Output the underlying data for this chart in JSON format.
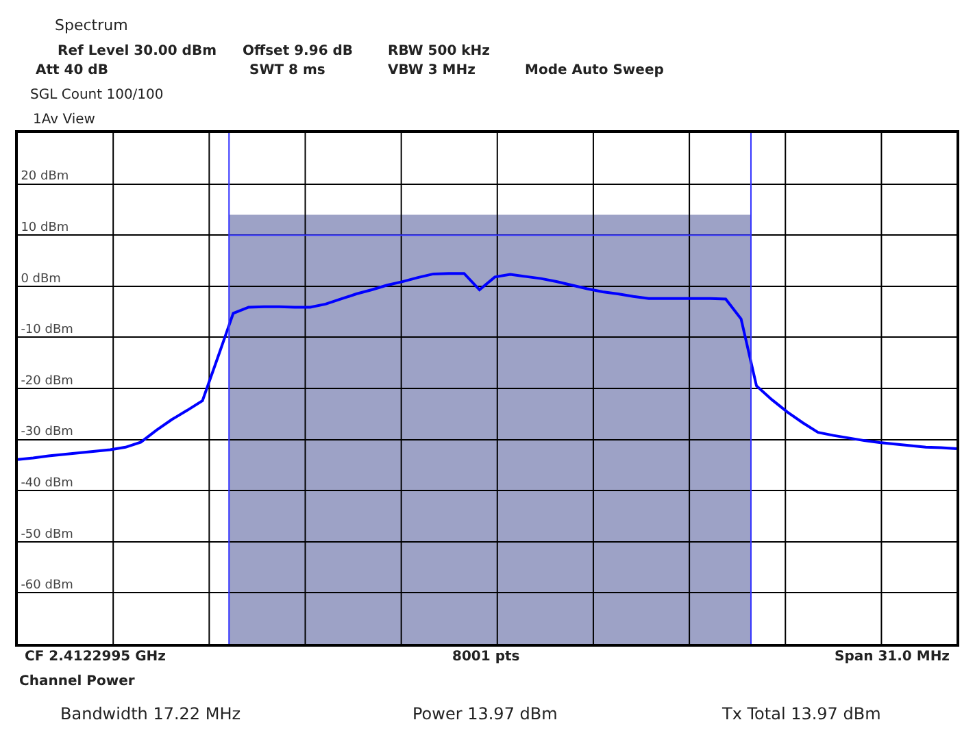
{
  "chart_data": {
    "type": "line",
    "annotations": [
      "Spectrum",
      "Ref Level 30.00 dBm",
      "Offset 9.96 dB",
      "RBW 500 kHz",
      "Att 40 dB",
      "SWT 8 ms",
      "VBW 3 MHz",
      "Mode Auto Sweep",
      "SGL Count 100/100",
      "1Av View",
      "CF 2.4122995 GHz",
      "8001 pts",
      "Span 31.0 MHz",
      "Channel Power",
      "Bandwidth 17.22 MHz",
      "Power 13.97 dBm",
      "Tx Total 13.97 dBm"
    ],
    "categories": [
      null,
      null,
      null,
      null,
      null,
      null,
      null,
      null,
      null,
      null,
      null,
      null,
      null,
      null,
      null,
      null,
      null,
      null,
      null,
      null,
      null,
      null,
      null,
      null,
      null,
      null,
      null,
      null,
      null,
      null,
      null,
      null,
      null,
      null,
      null,
      null,
      null,
      null,
      null,
      null,
      null,
      null,
      null,
      null,
      null,
      null,
      null,
      null,
      null,
      null,
      null,
      null,
      null,
      null,
      null,
      null,
      null,
      null,
      null,
      null,
      null,
      null
    ],
    "series": [
      {
        "color": "#0000ff",
        "values": [
          -33.9,
          -33.6,
          -33.2,
          -32.9,
          -32.6,
          -32.3,
          -32.0,
          -31.5,
          -30.5,
          -28.2,
          -26.1,
          -24.3,
          -22.4,
          -13.9,
          -5.3,
          -4.1,
          -4.0,
          -4.0,
          -4.1,
          -4.1,
          -3.5,
          -2.5,
          -1.5,
          -0.7,
          0.2,
          0.9,
          1.7,
          2.4,
          2.5,
          2.5,
          -0.7,
          1.8,
          2.3,
          1.9,
          1.5,
          0.9,
          0.2,
          -0.5,
          -1.1,
          -1.5,
          -2.0,
          -2.4,
          -2.4,
          -2.4,
          -2.4,
          -2.4,
          -2.5,
          -6.4,
          -19.5,
          -22.2,
          -24.6,
          -26.7,
          -28.6,
          -29.2,
          -29.7,
          -30.2,
          -30.6,
          -30.9,
          -31.2,
          -31.5,
          -31.6,
          -31.8
        ]
      }
    ],
    "ylim": [
      -70,
      30
    ],
    "yticks": [
      {
        "value": 20,
        "label": "20 dBm"
      },
      {
        "value": 10,
        "label": "10 dBm"
      },
      {
        "value": 0,
        "label": "0 dBm"
      },
      {
        "value": -10,
        "label": "-10 dBm"
      },
      {
        "value": -20,
        "label": "-20 dBm"
      },
      {
        "value": -30,
        "label": "-30 dBm"
      },
      {
        "value": -40,
        "label": "-40 dBm"
      },
      {
        "value": -50,
        "label": "-50 dBm"
      },
      {
        "value": -60,
        "label": "-60 dBm"
      }
    ],
    "bands": [
      {
        "axis": "y",
        "from": -70,
        "to": 13.97,
        "color": "#9da2c6"
      }
    ],
    "ref_lines": [
      {
        "axis": "y",
        "value": 10,
        "color": "#3333ff"
      }
    ],
    "grid": true,
    "marker": "none",
    "line_style": "solid",
    "tick_labels": "y"
  }
}
